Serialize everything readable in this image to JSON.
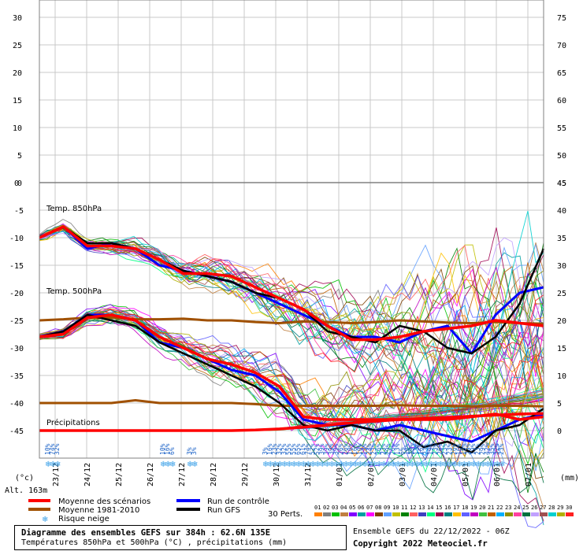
{
  "chart_data": {
    "type": "line",
    "panels": [
      {
        "name": "upper",
        "left_ticks": [
          30,
          25,
          20,
          15,
          10,
          5,
          0
        ],
        "right_ticks": [
          75,
          70,
          65,
          60,
          55,
          50,
          45
        ]
      },
      {
        "name": "lower",
        "left_ticks": [
          0,
          -5,
          -10,
          -15,
          -20,
          -25,
          -30,
          -35,
          -40,
          -45
        ],
        "right_ticks": [
          45,
          40,
          35,
          30,
          25,
          20,
          15,
          10,
          5,
          0
        ]
      }
    ],
    "left_axis_unit": "(°c)",
    "right_axis_unit": "(mm)",
    "altitude": "Alt. 163m",
    "dates": [
      "23/12",
      "24/12",
      "25/12",
      "26/12",
      "27/12",
      "28/12",
      "29/12",
      "30/12",
      "31/12",
      "01/01",
      "02/01",
      "03/01",
      "04/01",
      "05/01",
      "06/01",
      "07/01"
    ],
    "annotations": {
      "t850": "Temp. 850hPa",
      "t500": "Temp. 500hPa",
      "precip": "Précipitations"
    },
    "snow_risk": [
      {
        "t": 0.9,
        "p": "10%"
      },
      {
        "t": 1.2,
        "p": "74%"
      },
      {
        "t": 1.5,
        "p": "32%"
      },
      {
        "t": 8.2,
        "p": "10%"
      },
      {
        "t": 8.5,
        "p": "16%"
      },
      {
        "t": 8.8,
        "p": "6%"
      },
      {
        "t": 9.9,
        "p": "3%"
      },
      {
        "t": 10.2,
        "p": "3%"
      },
      {
        "t": 14.7,
        "p": "3%"
      },
      {
        "t": 15.0,
        "p": "16%"
      },
      {
        "t": 15.3,
        "p": "23%"
      },
      {
        "t": 15.6,
        "p": "32%"
      },
      {
        "t": 15.9,
        "p": "32%"
      },
      {
        "t": 16.2,
        "p": "55%"
      },
      {
        "t": 16.5,
        "p": "55%"
      },
      {
        "t": 16.8,
        "p": "65%"
      },
      {
        "t": 17.1,
        "p": "61%"
      },
      {
        "t": 17.4,
        "p": "74%"
      },
      {
        "t": 17.7,
        "p": "52%"
      },
      {
        "t": 18.0,
        "p": "52%"
      },
      {
        "t": 18.3,
        "p": "39%"
      },
      {
        "t": 18.6,
        "p": "39%"
      },
      {
        "t": 18.9,
        "p": "39%"
      },
      {
        "t": 19.2,
        "p": "39%"
      },
      {
        "t": 19.5,
        "p": "26%"
      },
      {
        "t": 19.8,
        "p": "26%"
      },
      {
        "t": 20.1,
        "p": "10%"
      },
      {
        "t": 20.4,
        "p": "16%"
      },
      {
        "t": 20.7,
        "p": "10%"
      },
      {
        "t": 21.0,
        "p": "13%"
      },
      {
        "t": 21.3,
        "p": "23%"
      },
      {
        "t": 21.6,
        "p": "23%"
      },
      {
        "t": 21.9,
        "p": "26%"
      },
      {
        "t": 22.2,
        "p": "23%"
      },
      {
        "t": 22.5,
        "p": "29%"
      },
      {
        "t": 22.8,
        "p": "26%"
      },
      {
        "t": 23.1,
        "p": "13%"
      },
      {
        "t": 23.4,
        "p": "6%"
      },
      {
        "t": 23.7,
        "p": "10%"
      },
      {
        "t": 24.0,
        "p": "19%"
      },
      {
        "t": 24.3,
        "p": "13%"
      },
      {
        "t": 24.6,
        "p": "16%"
      },
      {
        "t": 24.9,
        "p": "23%"
      },
      {
        "t": 25.2,
        "p": "19%"
      },
      {
        "t": 25.5,
        "p": "23%"
      },
      {
        "t": 25.8,
        "p": "26%"
      },
      {
        "t": 26.1,
        "p": "23%"
      },
      {
        "t": 26.4,
        "p": "23%"
      },
      {
        "t": 26.7,
        "p": "26%"
      },
      {
        "t": 27.0,
        "p": "16%"
      },
      {
        "t": 27.3,
        "p": "19%"
      },
      {
        "t": 27.6,
        "p": "23%"
      },
      {
        "t": 27.9,
        "p": "19%"
      },
      {
        "t": 28.2,
        "p": "23%"
      },
      {
        "t": 28.5,
        "p": "29%"
      },
      {
        "t": 28.8,
        "p": "42%"
      },
      {
        "t": 29.1,
        "p": "35%"
      },
      {
        "t": 29.4,
        "p": "32%"
      },
      {
        "t": 29.7,
        "p": "23%"
      }
    ],
    "series": [
      {
        "name": "Moyenne des scénarios",
        "color": "#ff0000",
        "kind": "mean",
        "t850": [
          -10,
          -8,
          -11.5,
          -11.5,
          -12,
          -14,
          -16.5,
          -16.5,
          -17,
          -19,
          -21,
          -23,
          -26,
          -28.5,
          -28.5,
          -28,
          -27,
          -26.5,
          -26,
          -25,
          -25.5,
          -26
        ],
        "t500": [
          -28,
          -27.5,
          -24.5,
          -24,
          -25,
          -28,
          -30,
          -32,
          -33,
          -34.5,
          -37,
          -42.5,
          -43,
          -43,
          -43,
          -43,
          -43,
          -43,
          -42.5,
          -42,
          -43,
          -42.5
        ],
        "precip": [
          0,
          0,
          0,
          0,
          0,
          0,
          0,
          0,
          0,
          0.1,
          0.3,
          0.6,
          1.0,
          1.4,
          1.7,
          2.0,
          2.2,
          2.4,
          2.6,
          2.8,
          3.0,
          3.1
        ]
      },
      {
        "name": "Moyenne 1981-2010",
        "color": "#a05000",
        "kind": "normal",
        "t850": [
          -25,
          -24.8,
          -24.5,
          -24.5,
          -24.8,
          -24.8,
          -24.7,
          -25,
          -25,
          -25.3,
          -25.5,
          -25.2,
          -25.3,
          -25.5,
          -25.3,
          -25,
          -25.2,
          -25.4,
          -25.5,
          -25.3,
          -25.5,
          -25.6
        ],
        "t500": [
          -40,
          -40,
          -40,
          -40,
          -39.5,
          -40,
          -40,
          -40,
          -40,
          -40.2,
          -40.5,
          -40.5,
          -40.5,
          -40.5,
          -40.5,
          -40.4,
          -40.5,
          -40.5,
          -40.6,
          -40.5,
          -40.5,
          -40.6
        ]
      },
      {
        "name": "Run de contrôle",
        "color": "#0000ff",
        "kind": "control",
        "t850": [
          -10,
          -8,
          -12,
          -11,
          -12,
          -15,
          -16,
          -17,
          -18,
          -20,
          -22,
          -24,
          -26,
          -28,
          -28,
          -29,
          -27,
          -26,
          -31,
          -24,
          -20,
          -19
        ],
        "t500": [
          -28,
          -27,
          -24,
          -24,
          -25,
          -29,
          -30,
          -32,
          -34,
          -35,
          -38,
          -43,
          -44,
          -44,
          -45,
          -44,
          -45,
          -46,
          -47,
          -45,
          -43,
          -42
        ]
      },
      {
        "name": "Run GFS",
        "color": "#000000",
        "kind": "gfs",
        "t850": [
          -10,
          -8,
          -11,
          -11,
          -12,
          -14,
          -16,
          -17,
          -18,
          -20,
          -21,
          -23,
          -27,
          -28,
          -29,
          -26,
          -27,
          -30,
          -31,
          -28,
          -22,
          -12
        ],
        "t500": [
          -28,
          -27,
          -24,
          -25,
          -26,
          -29,
          -31,
          -33,
          -35,
          -37,
          -40,
          -44,
          -45,
          -44,
          -45,
          -45,
          -48,
          -47,
          -49,
          -45,
          -44,
          -41
        ]
      }
    ],
    "members_count": 30
  },
  "legend": {
    "mean": "Moyenne des scénarios",
    "clim": "Moyenne 1981-2010",
    "snow": "Risque neige",
    "control": "Run de contrôle",
    "gfs": "Run GFS",
    "perts": "30 Perts.",
    "pert_numbers": [
      "01",
      "02",
      "03",
      "04",
      "05",
      "06",
      "07",
      "08",
      "09",
      "10",
      "11",
      "12",
      "13",
      "14",
      "15",
      "16",
      "17",
      "18",
      "19",
      "20",
      "21",
      "22",
      "23",
      "24",
      "25",
      "26",
      "27",
      "28",
      "29",
      "30"
    ],
    "pert_colors": [
      "#ff8000",
      "#808080",
      "#00c000",
      "#c08040",
      "#8000ff",
      "#00a0a0",
      "#ff00ff",
      "#804000",
      "#60a0ff",
      "#c0c000",
      "#008000",
      "#ff6060",
      "#4040c0",
      "#00ff80",
      "#a00050",
      "#008080",
      "#ffc000",
      "#6060ff",
      "#c000c0",
      "#40c040",
      "#c06000",
      "#00b0ff",
      "#909000",
      "#ff40a0",
      "#007040",
      "#c0a0ff",
      "#a05050",
      "#00d0d0",
      "#b0b000",
      "#ff2020"
    ]
  },
  "footer": {
    "title": "Diagramme des ensembles GEFS sur 384h : 62.6N 135E",
    "subtitle": "Températures 850hPa et 500hPa (°C) , précipitations (mm)",
    "run": "Ensemble GEFS du 22/12/2022 - 06Z",
    "copyright": "Copyright 2022 Meteociel.fr"
  }
}
